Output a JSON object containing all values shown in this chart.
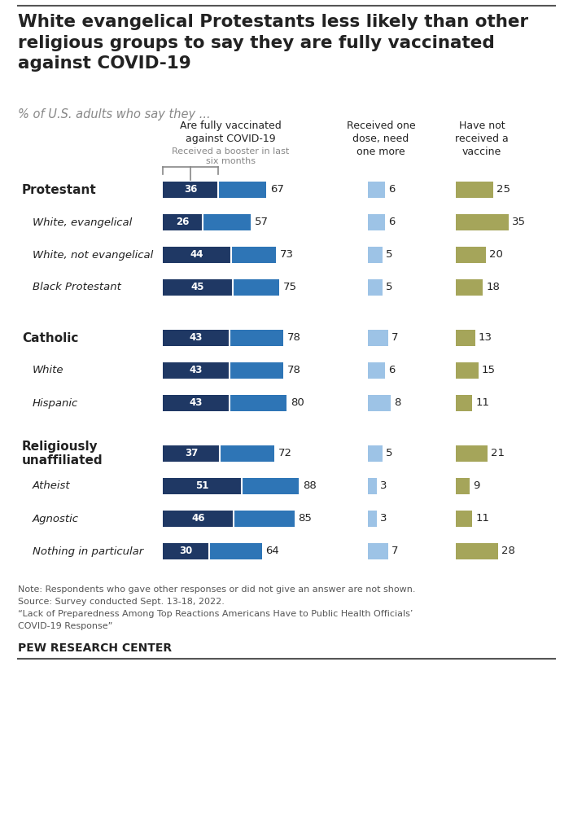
{
  "title": "White evangelical Protestants less likely than other\nreligious groups to say they are fully vaccinated\nagainst COVID-19",
  "subtitle": "% of U.S. adults who say they ...",
  "rows": [
    {
      "label": "Protestant",
      "bold": true,
      "indent": 0,
      "booster": 36,
      "fully": 67,
      "one_dose": 6,
      "no_vax": 25,
      "group_start": true
    },
    {
      "label": "White, evangelical",
      "bold": false,
      "indent": 1,
      "booster": 26,
      "fully": 57,
      "one_dose": 6,
      "no_vax": 35,
      "group_start": false
    },
    {
      "label": "White, not evangelical",
      "bold": false,
      "indent": 1,
      "booster": 44,
      "fully": 73,
      "one_dose": 5,
      "no_vax": 20,
      "group_start": false
    },
    {
      "label": "Black Protestant",
      "bold": false,
      "indent": 1,
      "booster": 45,
      "fully": 75,
      "one_dose": 5,
      "no_vax": 18,
      "group_start": false
    },
    {
      "label": "Catholic",
      "bold": true,
      "indent": 0,
      "booster": 43,
      "fully": 78,
      "one_dose": 7,
      "no_vax": 13,
      "group_start": true
    },
    {
      "label": "White",
      "bold": false,
      "indent": 1,
      "booster": 43,
      "fully": 78,
      "one_dose": 6,
      "no_vax": 15,
      "group_start": false
    },
    {
      "label": "Hispanic",
      "bold": false,
      "indent": 1,
      "booster": 43,
      "fully": 80,
      "one_dose": 8,
      "no_vax": 11,
      "group_start": false
    },
    {
      "label": "Religiously\nunaffiliated",
      "bold": true,
      "indent": 0,
      "booster": 37,
      "fully": 72,
      "one_dose": 5,
      "no_vax": 21,
      "group_start": true
    },
    {
      "label": "Atheist",
      "bold": false,
      "indent": 1,
      "booster": 51,
      "fully": 88,
      "one_dose": 3,
      "no_vax": 9,
      "group_start": false
    },
    {
      "label": "Agnostic",
      "bold": false,
      "indent": 1,
      "booster": 46,
      "fully": 85,
      "one_dose": 3,
      "no_vax": 11,
      "group_start": false
    },
    {
      "label": "Nothing in particular",
      "bold": false,
      "indent": 1,
      "booster": 30,
      "fully": 64,
      "one_dose": 7,
      "no_vax": 28,
      "group_start": false
    }
  ],
  "colors": {
    "dark_blue": "#1F3864",
    "mid_blue": "#2E75B6",
    "light_blue": "#9DC3E6",
    "olive": "#A5A55A",
    "text_dark": "#222222",
    "text_gray": "#888888",
    "background": "#ffffff",
    "border": "#555555"
  },
  "notes": [
    "Note: Respondents who gave other responses or did not give an answer are not shown.",
    "Source: Survey conducted Sept. 13-18, 2022.",
    "“Lack of Preparedness Among Top Reactions Americans Have to Public Health Officials’",
    "COVID-19 Response”"
  ],
  "footer": "PEW RESEARCH CENTER"
}
